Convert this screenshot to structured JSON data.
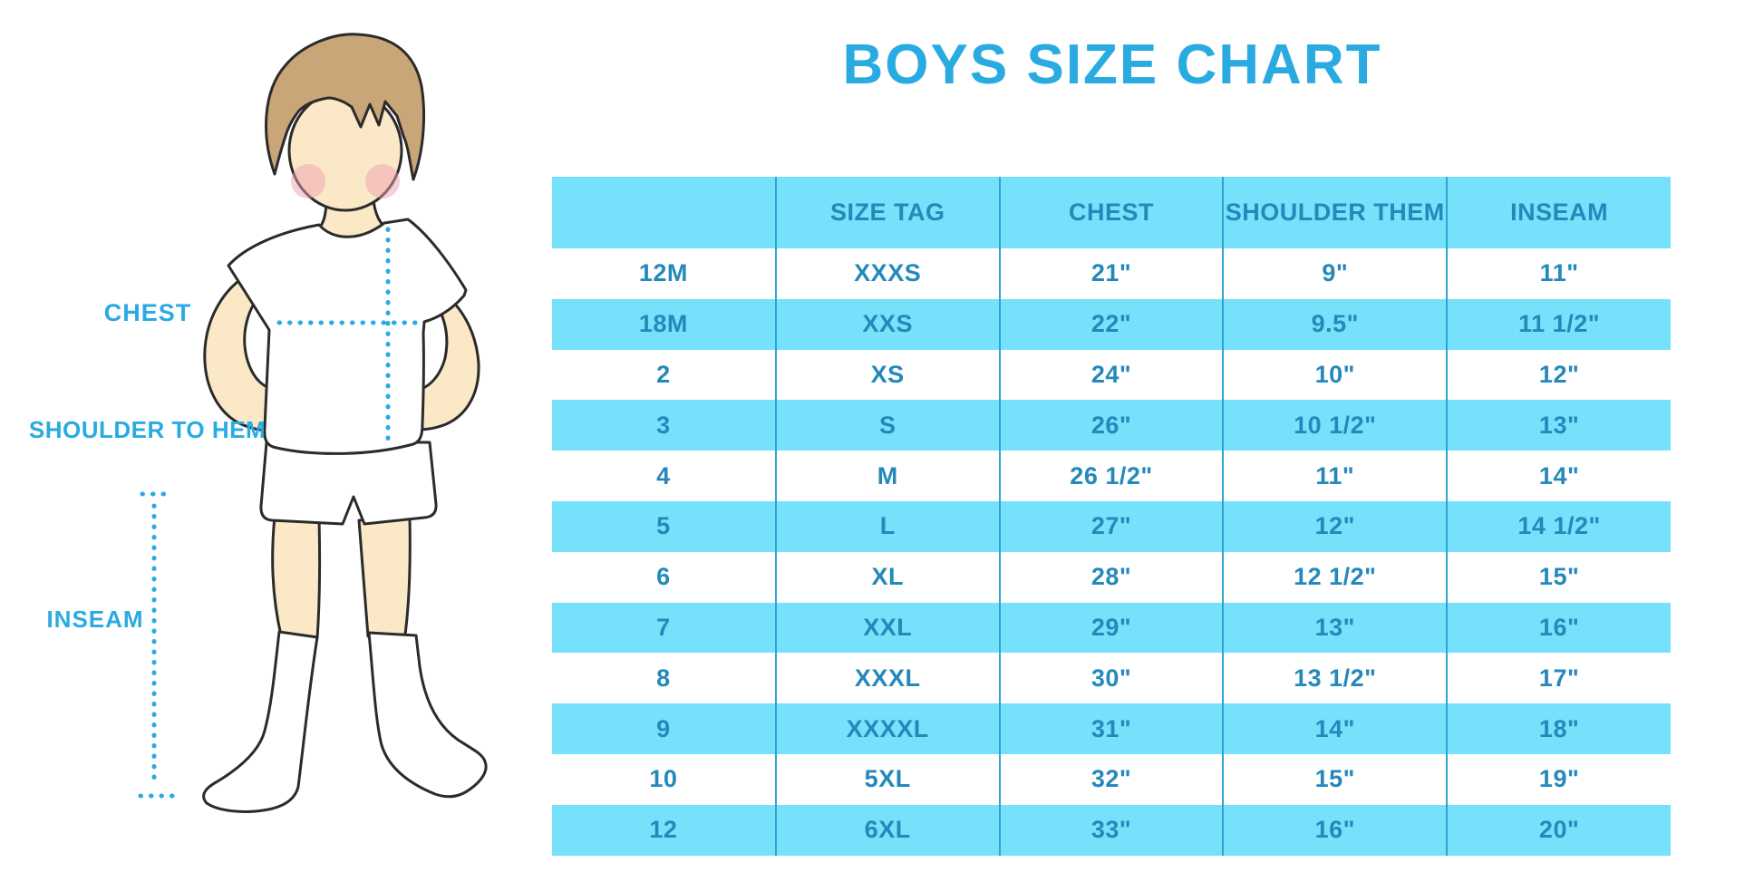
{
  "title": "BOYS SIZE CHART",
  "colors": {
    "title_blue": "#29ABE2",
    "stripe_blue": "#75E1FB",
    "table_text": "#2489BA",
    "divider": "#2FA3D2",
    "label_blue": "#29ABE2",
    "hair": "#C9A678",
    "skin": "#FAE8C6",
    "cheek": "#F0A0B4",
    "outline": "#2B2B2B"
  },
  "figure_labels": {
    "chest": "CHEST",
    "shoulder_to_hem": "SHOULDER TO HEM",
    "inseam": "INSEAM"
  },
  "chart_data": {
    "type": "table",
    "title": "BOYS SIZE CHART",
    "columns": [
      "",
      "SIZE TAG",
      "CHEST",
      "SHOULDER THEM",
      "INSEAM"
    ],
    "rows": [
      [
        "12M",
        "XXXS",
        "21\"",
        "9\"",
        "11\""
      ],
      [
        "18M",
        "XXS",
        "22\"",
        "9.5\"",
        "11 1/2\""
      ],
      [
        "2",
        "XS",
        "24\"",
        "10\"",
        "12\""
      ],
      [
        "3",
        "S",
        "26\"",
        "10 1/2\"",
        "13\""
      ],
      [
        "4",
        "M",
        "26 1/2\"",
        "11\"",
        "14\""
      ],
      [
        "5",
        "L",
        "27\"",
        "12\"",
        "14 1/2\""
      ],
      [
        "6",
        "XL",
        "28\"",
        "12 1/2\"",
        "15\""
      ],
      [
        "7",
        "XXL",
        "29\"",
        "13\"",
        "16\""
      ],
      [
        "8",
        "XXXL",
        "30\"",
        "13 1/2\"",
        "17\""
      ],
      [
        "9",
        "XXXXL",
        "31\"",
        "14\"",
        "18\""
      ],
      [
        "10",
        "5XL",
        "32\"",
        "15\"",
        "19\""
      ],
      [
        "12",
        "6XL",
        "33\"",
        "16\"",
        "20\""
      ]
    ],
    "striped_rows": "header light-blue; body alternates white / light-blue starting with white",
    "legend_position": "none",
    "grid": "vertical column dividers only"
  }
}
